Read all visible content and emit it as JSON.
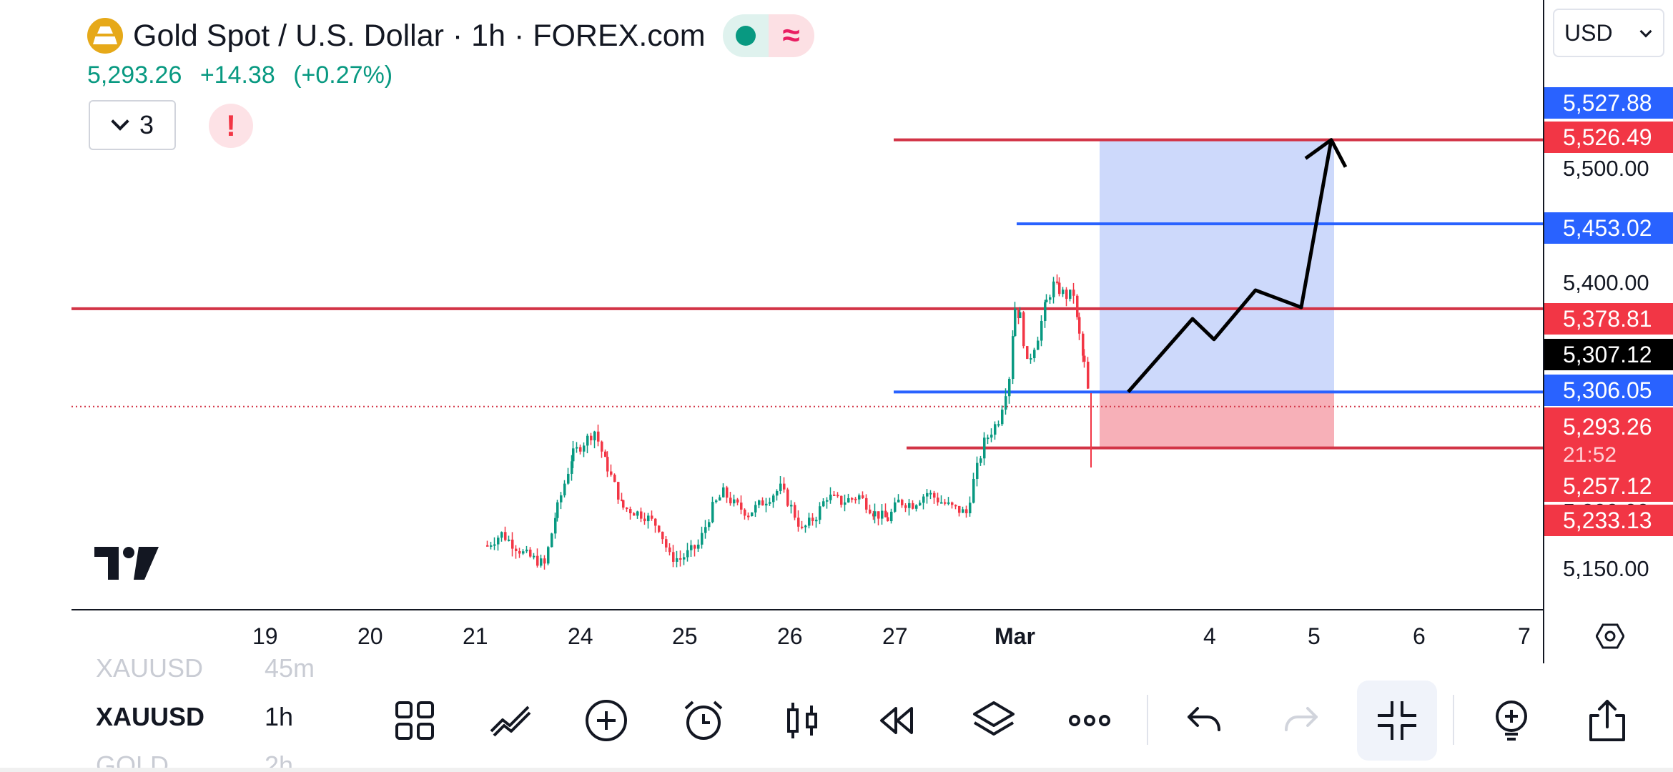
{
  "header": {
    "symbol_title": "Gold Spot / U.S. Dollar · 1h · FOREX.com",
    "last_price": "5,293.26",
    "change": "+14.38",
    "change_pct": "(+0.27%)",
    "indicator_count": "3",
    "alert_glyph": "!",
    "logo_icon": "gold-bars-icon",
    "market_status_icon": "market-open-dot-icon",
    "delay_icon": "approx-wave-icon"
  },
  "scale": {
    "currency": "USD",
    "ticks": [
      "5,500.00",
      "5,400.00",
      "5,200.00",
      "5,150.00"
    ],
    "labels": [
      {
        "text": "5,527.88",
        "color": "blue"
      },
      {
        "text": "5,526.49",
        "color": "red"
      },
      {
        "text": "5,453.02",
        "color": "blue"
      },
      {
        "text": "5,378.81",
        "color": "red"
      },
      {
        "text": "5,307.12",
        "color": "black"
      },
      {
        "text": "5,306.05",
        "color": "blue"
      },
      {
        "text": "5,293.26",
        "color": "red"
      },
      {
        "text": "5,257.12",
        "color": "red"
      },
      {
        "text": "5,233.13",
        "color": "red"
      }
    ],
    "countdown": "21:52"
  },
  "xaxis": {
    "ticks": [
      "19",
      "20",
      "21",
      "24",
      "25",
      "26",
      "27",
      "Mar",
      "4",
      "5",
      "6",
      "7"
    ]
  },
  "symbols": [
    {
      "sym": "XAUUSD",
      "tf": "45m",
      "state": "faded"
    },
    {
      "sym": "XAUUSD",
      "tf": "1h",
      "state": "active"
    },
    {
      "sym": "GOLD",
      "tf": "2h",
      "state": "faded"
    }
  ],
  "toolbar": {
    "icons": [
      "layout-grid-icon",
      "drawing-tools-icon",
      "add-icon",
      "alarm-clock-icon",
      "candles-icon",
      "replay-icon",
      "layers-icon",
      "more-dots-icon",
      "undo-icon",
      "redo-icon",
      "fullscreen-exit-icon",
      "idea-bulb-icon",
      "share-icon"
    ]
  },
  "colors": {
    "up": "#089981",
    "down": "#f23645",
    "blue": "#2962ff",
    "target_zone": "#cdd9fb",
    "stop_zone": "#f7b0b8",
    "red_line": "#d23446"
  },
  "chart_data": {
    "type": "candlestick",
    "title": "",
    "xlabel": "",
    "ylabel": "",
    "ylim": [
      5150,
      5560
    ],
    "horizontal_levels": [
      {
        "price": 5526.49,
        "color": "red"
      },
      {
        "price": 5453.02,
        "color": "blue"
      },
      {
        "price": 5378.81,
        "color": "red"
      },
      {
        "price": 5306.05,
        "color": "blue"
      },
      {
        "price": 5293.26,
        "color": "red",
        "style": "dotted"
      },
      {
        "price": 5257.12,
        "color": "red"
      }
    ],
    "projection_path": [
      5306.05,
      5370.0,
      5352.0,
      5395.0,
      5380.0,
      5526.49
    ],
    "position": {
      "entry": 5306.05,
      "target": 5526.49,
      "stop": 5257.12
    }
  }
}
